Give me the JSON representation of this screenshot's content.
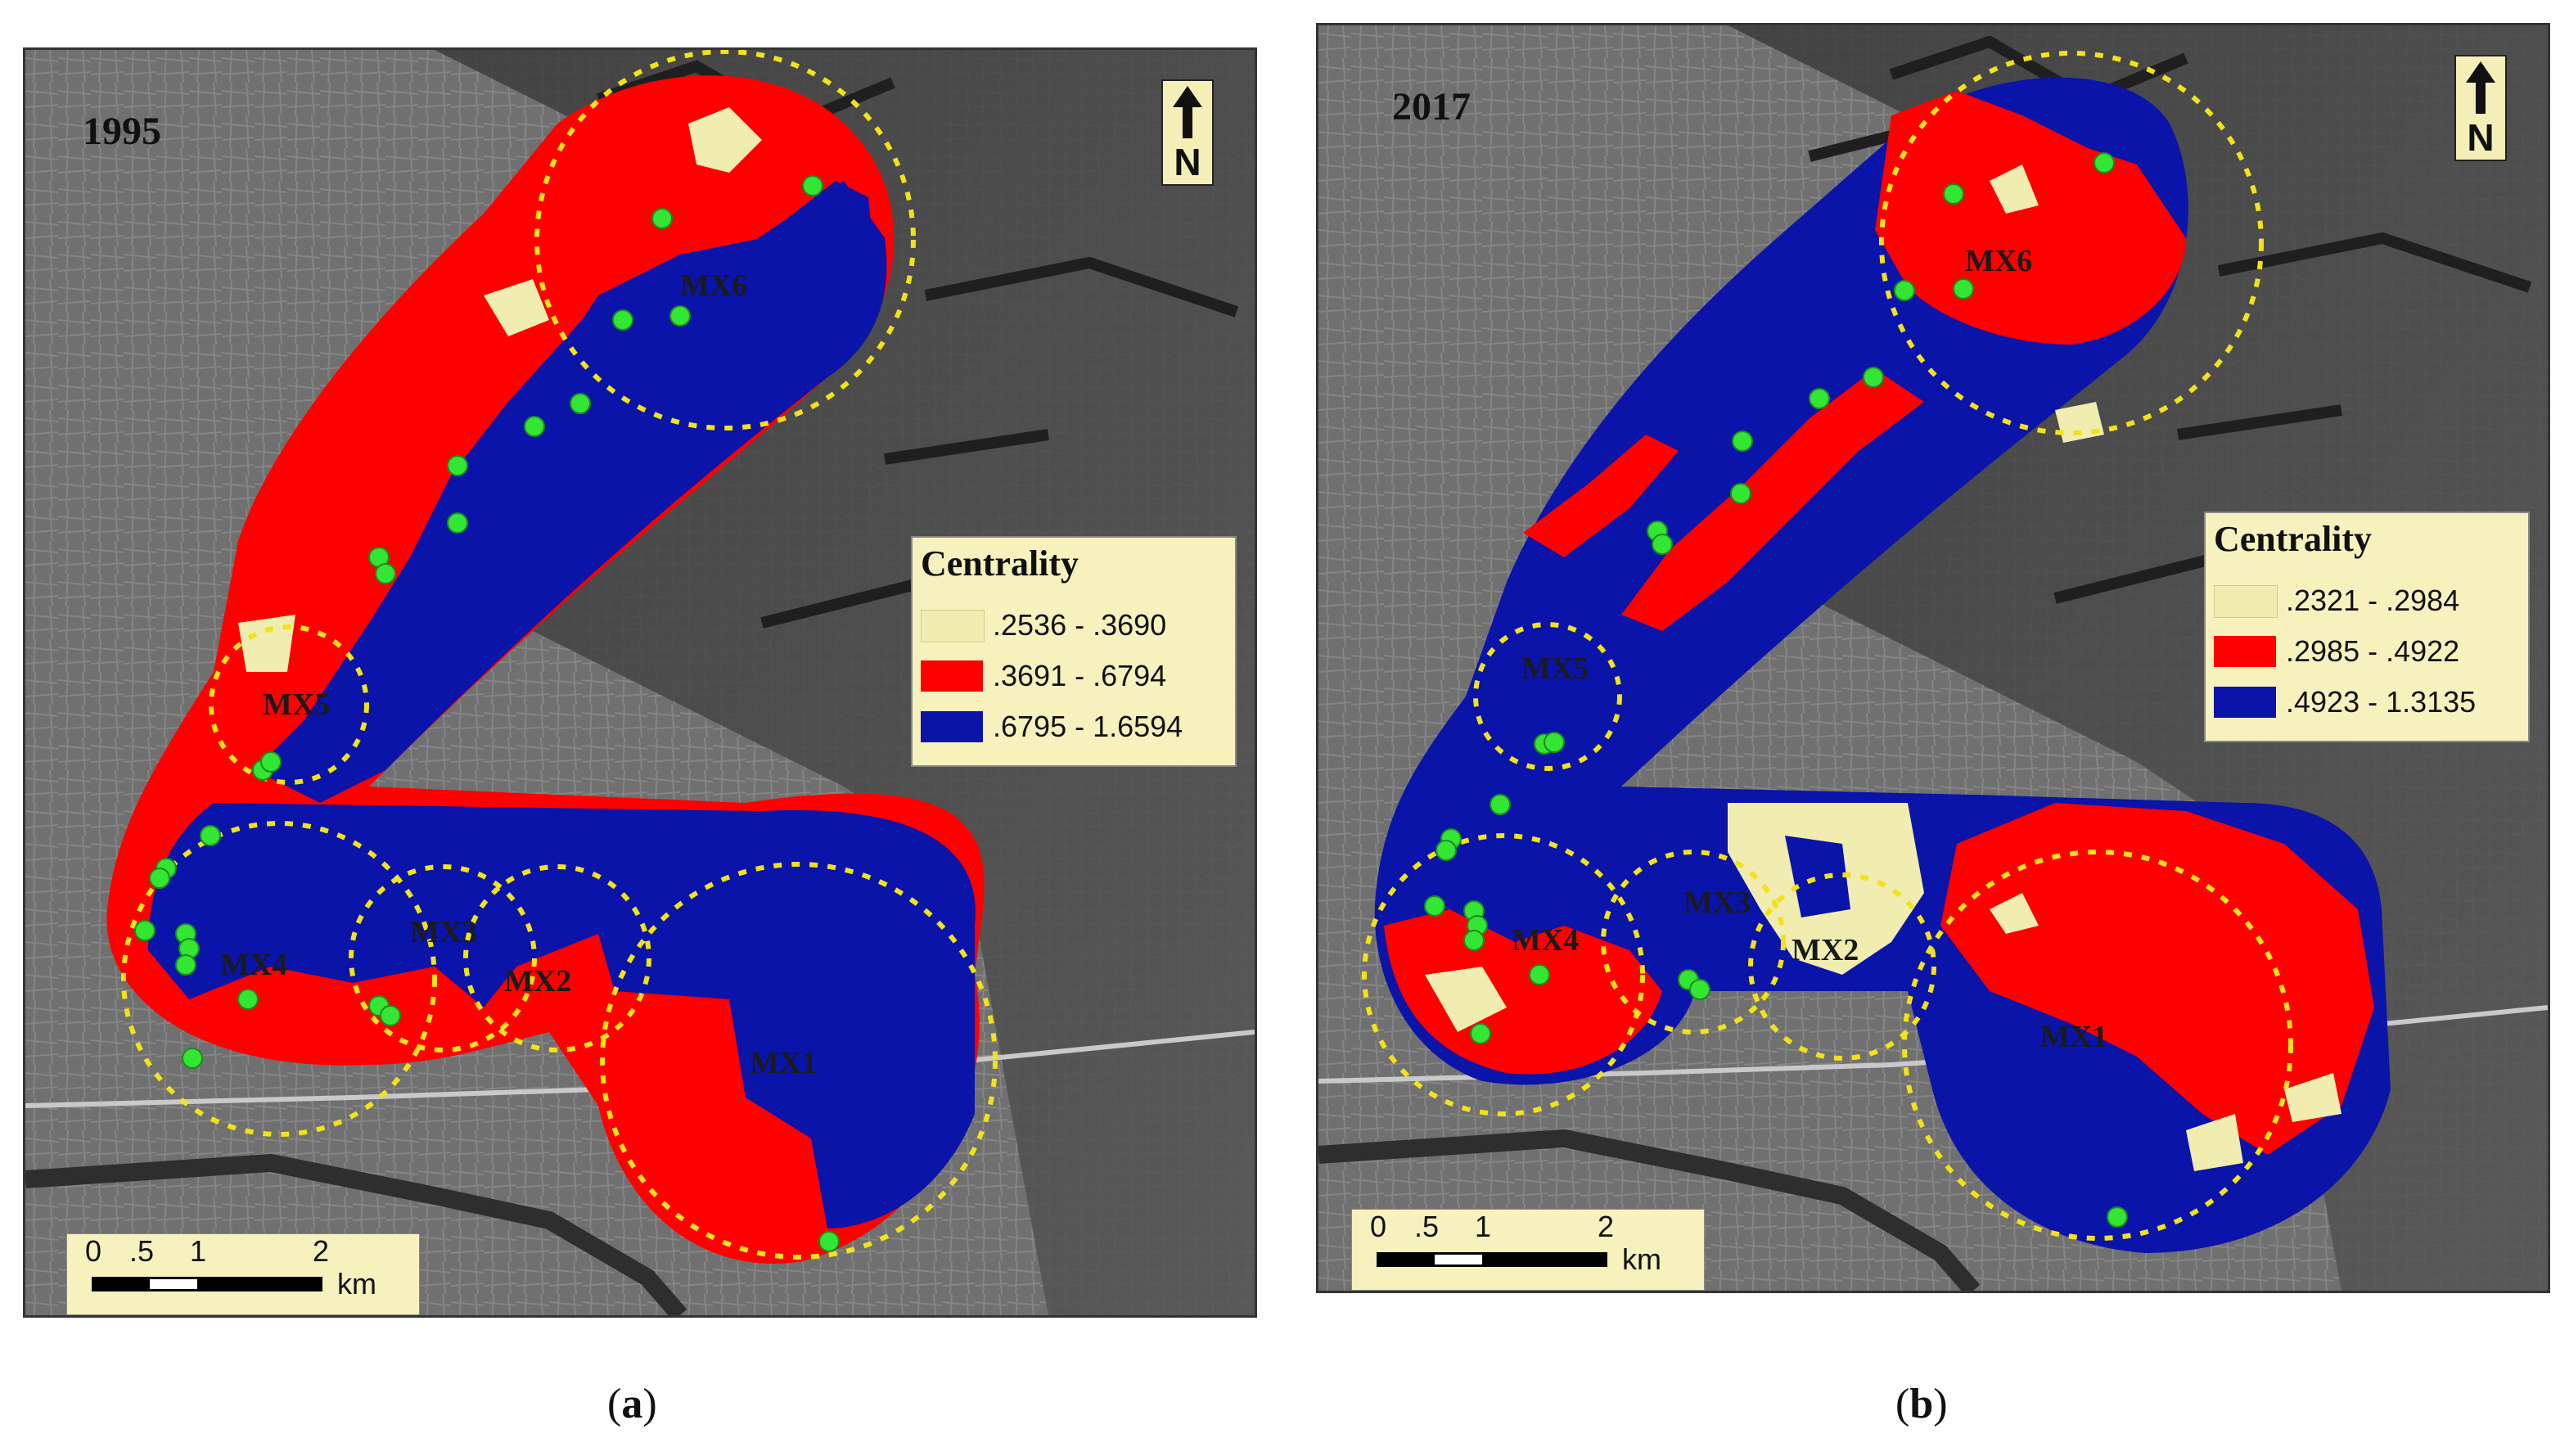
{
  "panels": [
    {
      "year": "1995",
      "north_label": "N",
      "legend": {
        "title": "Centrality",
        "classes": [
          {
            "range": ".2536 - .3690",
            "color": "#f1edb0"
          },
          {
            "range": ".3691 - .6794",
            "color": "#ff0000"
          },
          {
            "range": ".6795 - 1.6594",
            "color": "#0a14a8"
          }
        ]
      },
      "zones": [
        "MX6",
        "MX5",
        "MX4",
        "MX3",
        "MX2",
        "MX1"
      ],
      "scale": {
        "ticks": [
          "0",
          ".5",
          "1",
          "2"
        ],
        "unit": "km"
      },
      "caption": {
        "open": "(",
        "letter": "a",
        "close": ")"
      }
    },
    {
      "year": "2017",
      "north_label": "N",
      "legend": {
        "title": "Centrality",
        "classes": [
          {
            "range": ".2321 - .2984",
            "color": "#f1edb0"
          },
          {
            "range": ".2985 - .4922",
            "color": "#ff0000"
          },
          {
            "range": ".4923 - 1.3135",
            "color": "#0a14a8"
          }
        ]
      },
      "zones": [
        "MX6",
        "MX5",
        "MX4",
        "MX3",
        "MX2",
        "MX1"
      ],
      "scale": {
        "ticks": [
          "0",
          ".5",
          "1",
          "2"
        ],
        "unit": "km"
      },
      "caption": {
        "open": "(",
        "letter": "b",
        "close": ")"
      }
    }
  ],
  "colors": {
    "background_imagery": "#6f6f6f",
    "zone_boundary": "#f2e21a",
    "sample_point": "#33e633"
  }
}
